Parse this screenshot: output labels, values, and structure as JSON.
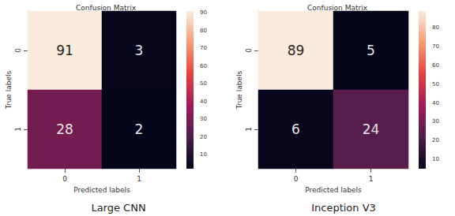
{
  "chart_data": [
    {
      "type": "heatmap",
      "title": "Confusion Matrix",
      "subtitle": "Large CNN",
      "x_label": "Predicted labels",
      "y_label": "True labels",
      "categories": [
        "0",
        "1"
      ],
      "y_categories": [
        "0",
        "1"
      ],
      "cells": [
        [
          91,
          3
        ],
        [
          28,
          2
        ]
      ],
      "data_labels": true,
      "colorbar": {
        "range": [
          2,
          91
        ],
        "ticks": [
          10,
          20,
          30,
          40,
          50,
          60,
          70,
          80,
          90
        ]
      }
    },
    {
      "type": "heatmap",
      "title": "Confusion Matrix",
      "subtitle": "Inception V3",
      "x_label": "Predicted labels",
      "y_label": "True labels",
      "categories": [
        "0",
        "1"
      ],
      "y_categories": [
        "0",
        "1"
      ],
      "cells": [
        [
          89,
          5
        ],
        [
          6,
          24
        ]
      ],
      "data_labels": true,
      "colorbar": {
        "range": [
          5,
          89
        ],
        "ticks": [
          10,
          20,
          30,
          40,
          50,
          60,
          70,
          80
        ]
      }
    }
  ]
}
